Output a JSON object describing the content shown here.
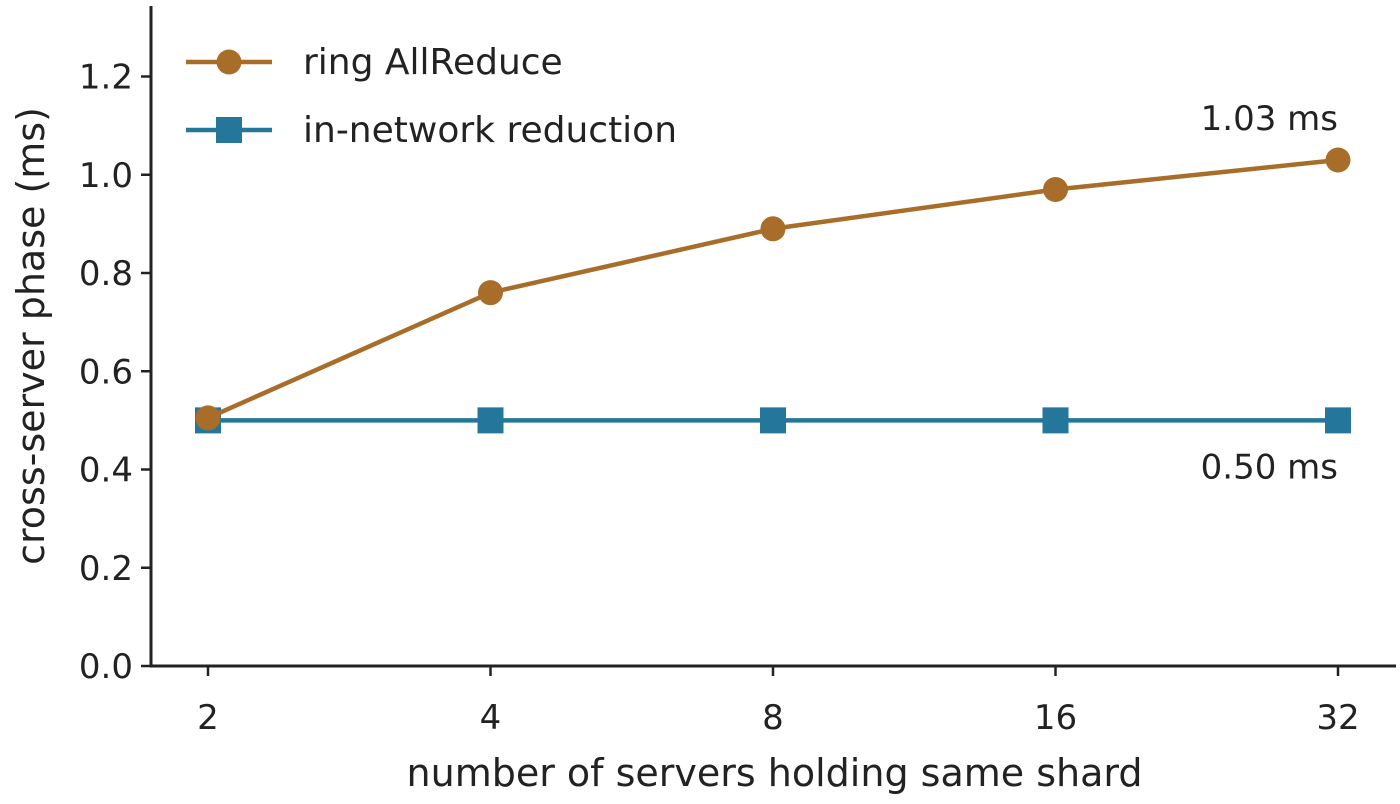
{
  "chart_data": {
    "type": "line",
    "x_scale": "log2",
    "x": [
      2,
      4,
      8,
      16,
      32
    ],
    "x_tick_labels": [
      "2",
      "4",
      "8",
      "16",
      "32"
    ],
    "xlabel": "number of servers holding same shard",
    "ylabel": "cross-server phase (ms)",
    "ylim": [
      0.0,
      1.35
    ],
    "y_ticks": [
      0.0,
      0.2,
      0.4,
      0.6,
      0.8,
      1.0,
      1.2
    ],
    "y_tick_labels": [
      "0.0",
      "0.2",
      "0.4",
      "0.6",
      "0.8",
      "1.0",
      "1.2"
    ],
    "grid": false,
    "legend_position": "top-left",
    "series": [
      {
        "name": "ring AllReduce",
        "marker": "circle",
        "color": "#a96d2a",
        "values": [
          0.505,
          0.76,
          0.89,
          0.97,
          1.03
        ],
        "annotation": "1.03 ms"
      },
      {
        "name": "in-network reduction",
        "marker": "square",
        "color": "#24769a",
        "values": [
          0.5,
          0.5,
          0.5,
          0.5,
          0.5
        ],
        "annotation": "0.50 ms"
      }
    ]
  }
}
